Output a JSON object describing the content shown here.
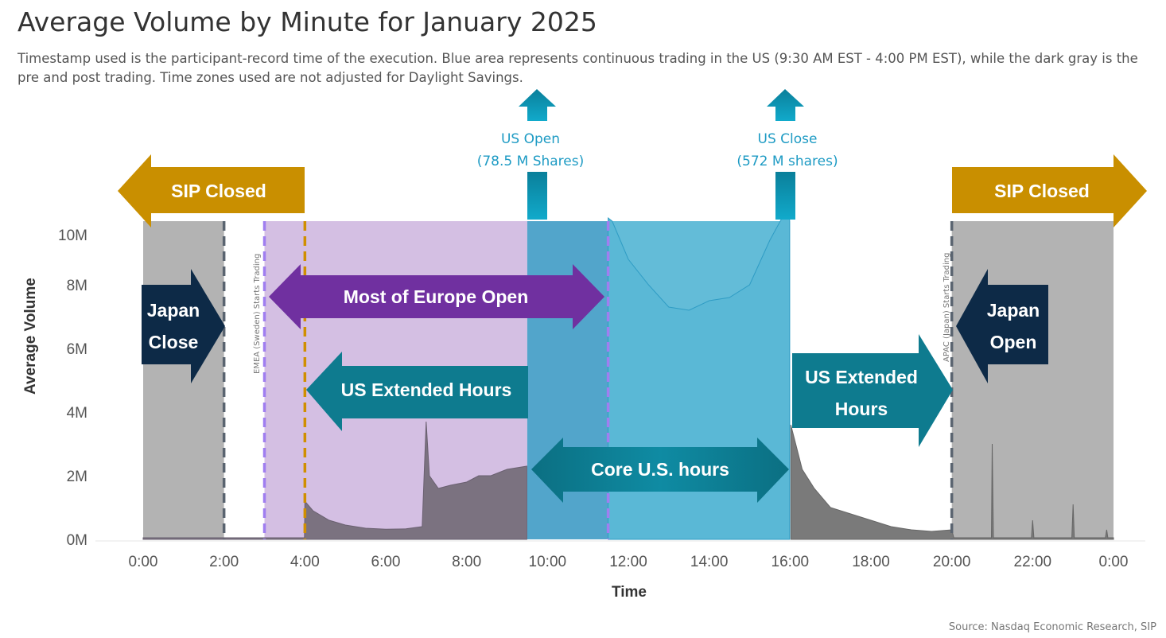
{
  "header": {
    "title": "Average Volume by Minute for January 2025",
    "subtitle": "Timestamp used is the participant-record time of the execution. Blue area represents continuous trading in the US (9:30 AM EST - 4:00 PM EST), while the dark gray is the pre and post trading. Time zones used are not adjusted for Daylight Savings."
  },
  "source": "Source: Nasdaq Economic Research, SIP",
  "annotations": {
    "sip_closed_left": "SIP Closed",
    "sip_closed_right": "SIP Closed",
    "us_open_1": "US Open",
    "us_open_2": "(78.5 M Shares)",
    "us_close_1": "US Close",
    "us_close_2": "(572 M shares)",
    "japan_close_1": "Japan",
    "japan_close_2": "Close",
    "japan_open_1": "Japan",
    "japan_open_2": "Open",
    "europe": "Most of Europe Open",
    "us_ext_left": "US Extended Hours",
    "us_ext_right_1": "US Extended",
    "us_ext_right_2": "Hours",
    "core": "Core U.S. hours",
    "emea": "EMEA (Sweden) Starts Trading",
    "apac": "APAC (Japan) Starts Trading"
  },
  "colors": {
    "gold": "#c98f00",
    "navy": "#0d2a47",
    "purple": "#7030a0",
    "teal": "#0e7b8f",
    "lightblue": "#63bcd8",
    "blue": "#52a5cb",
    "lavender": "#d4bfe3",
    "gray": "#b3b3b3"
  },
  "chart_data": {
    "type": "area",
    "title": "Average Volume by Minute for January 2025",
    "xlabel": "Time",
    "ylabel": "Average Volume",
    "x_ticks": [
      "0:00",
      "2:00",
      "4:00",
      "6:00",
      "8:00",
      "10:00",
      "12:00",
      "14:00",
      "16:00",
      "18:00",
      "20:00",
      "22:00",
      "0:00"
    ],
    "y_ticks": [
      "0M",
      "2M",
      "4M",
      "6M",
      "8M",
      "10M"
    ],
    "xlim": [
      0,
      24
    ],
    "ylim": [
      0,
      10
    ],
    "series": [
      {
        "name": "Average Volume (M)",
        "points": [
          [
            0,
            0.05
          ],
          [
            2,
            0.05
          ],
          [
            3.99,
            0.05
          ],
          [
            4.0,
            1.2
          ],
          [
            4.2,
            0.9
          ],
          [
            4.6,
            0.6
          ],
          [
            5,
            0.45
          ],
          [
            5.5,
            0.35
          ],
          [
            6,
            0.32
          ],
          [
            6.5,
            0.33
          ],
          [
            6.9,
            0.4
          ],
          [
            7.0,
            3.7
          ],
          [
            7.08,
            2.0
          ],
          [
            7.3,
            1.6
          ],
          [
            7.6,
            1.7
          ],
          [
            8,
            1.8
          ],
          [
            8.3,
            2.0
          ],
          [
            8.6,
            2.0
          ],
          [
            9,
            2.2
          ],
          [
            9.49,
            2.3
          ],
          [
            9.5,
            12
          ],
          [
            11.5,
            12
          ],
          [
            11.6,
            10
          ],
          [
            12,
            8.8
          ],
          [
            12.5,
            8
          ],
          [
            13,
            7.3
          ],
          [
            13.5,
            7.2
          ],
          [
            14,
            7.5
          ],
          [
            14.5,
            7.6
          ],
          [
            15,
            8
          ],
          [
            15.5,
            9.4
          ],
          [
            15.8,
            10.5
          ],
          [
            15.99,
            12
          ],
          [
            16.02,
            3.6
          ],
          [
            16.3,
            2.2
          ],
          [
            16.6,
            1.6
          ],
          [
            17,
            1.0
          ],
          [
            17.5,
            0.8
          ],
          [
            18,
            0.6
          ],
          [
            18.5,
            0.4
          ],
          [
            19,
            0.3
          ],
          [
            19.5,
            0.25
          ],
          [
            20,
            0.3
          ],
          [
            20.05,
            0.05
          ],
          [
            20.98,
            0.05
          ],
          [
            21,
            3.0
          ],
          [
            21.03,
            0.05
          ],
          [
            21.97,
            0.05
          ],
          [
            22,
            0.6
          ],
          [
            22.03,
            0.05
          ],
          [
            22.97,
            0.05
          ],
          [
            23,
            1.1
          ],
          [
            23.03,
            0.05
          ],
          [
            23.8,
            0.05
          ],
          [
            23.83,
            0.3
          ],
          [
            23.86,
            0.05
          ],
          [
            24,
            0.05
          ]
        ]
      }
    ],
    "bands": [
      {
        "name": "SIP closed",
        "from": 0,
        "to": 2
      },
      {
        "name": "Europe open",
        "from": 3,
        "to": 9.5
      },
      {
        "name": "US open period",
        "from": 9.5,
        "to": 11.5
      },
      {
        "name": "Core US hours",
        "from": 11.5,
        "to": 16
      },
      {
        "name": "SIP closed",
        "from": 20,
        "to": 24
      }
    ],
    "reference_lines": [
      2,
      3,
      4,
      11.5,
      20
    ]
  }
}
